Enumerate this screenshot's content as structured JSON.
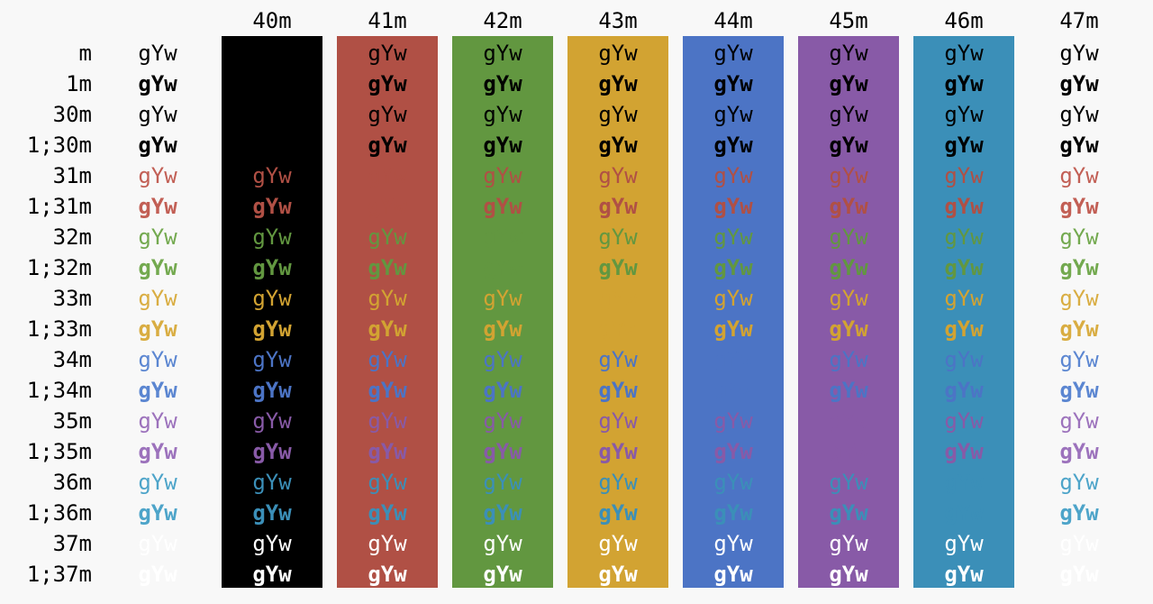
{
  "headers": [
    "40m",
    "41m",
    "42m",
    "43m",
    "44m",
    "45m",
    "46m",
    "47m"
  ],
  "sample_text": "gYw",
  "colors": {
    "page_bg": "#f8f8f8",
    "default_fg": "#000000",
    "bg": [
      "#000000",
      "#b05045",
      "#629740",
      "#d2a332",
      "#4c74c5",
      "#885aa7",
      "#3b8fb8",
      "#f8f8f8"
    ],
    "fg": [
      "#000000",
      "#b05045",
      "#629740",
      "#d2a332",
      "#4c74c5",
      "#885aa7",
      "#3b8fb8",
      "#ffffff"
    ],
    "fg_bright": [
      "#000000",
      "#c25f55",
      "#73a94f",
      "#d9ad42",
      "#5b86d1",
      "#9c72bc",
      "#4da4c9",
      "#ffffff"
    ]
  },
  "rows": [
    {
      "label": "m",
      "bold": false,
      "fg": null
    },
    {
      "label": "1m",
      "bold": true,
      "fg": null
    },
    {
      "label": "30m",
      "bold": false,
      "fg": 0
    },
    {
      "label": "1;30m",
      "bold": true,
      "fg": 0
    },
    {
      "label": "31m",
      "bold": false,
      "fg": 1
    },
    {
      "label": "1;31m",
      "bold": true,
      "fg": 1
    },
    {
      "label": "32m",
      "bold": false,
      "fg": 2
    },
    {
      "label": "1;32m",
      "bold": true,
      "fg": 2
    },
    {
      "label": "33m",
      "bold": false,
      "fg": 3
    },
    {
      "label": "1;33m",
      "bold": true,
      "fg": 3
    },
    {
      "label": "34m",
      "bold": false,
      "fg": 4
    },
    {
      "label": "1;34m",
      "bold": true,
      "fg": 4
    },
    {
      "label": "35m",
      "bold": false,
      "fg": 5
    },
    {
      "label": "1;35m",
      "bold": true,
      "fg": 5
    },
    {
      "label": "36m",
      "bold": false,
      "fg": 6
    },
    {
      "label": "1;36m",
      "bold": true,
      "fg": 6
    },
    {
      "label": "37m",
      "bold": false,
      "fg": 7
    },
    {
      "label": "1;37m",
      "bold": true,
      "fg": 7
    }
  ]
}
